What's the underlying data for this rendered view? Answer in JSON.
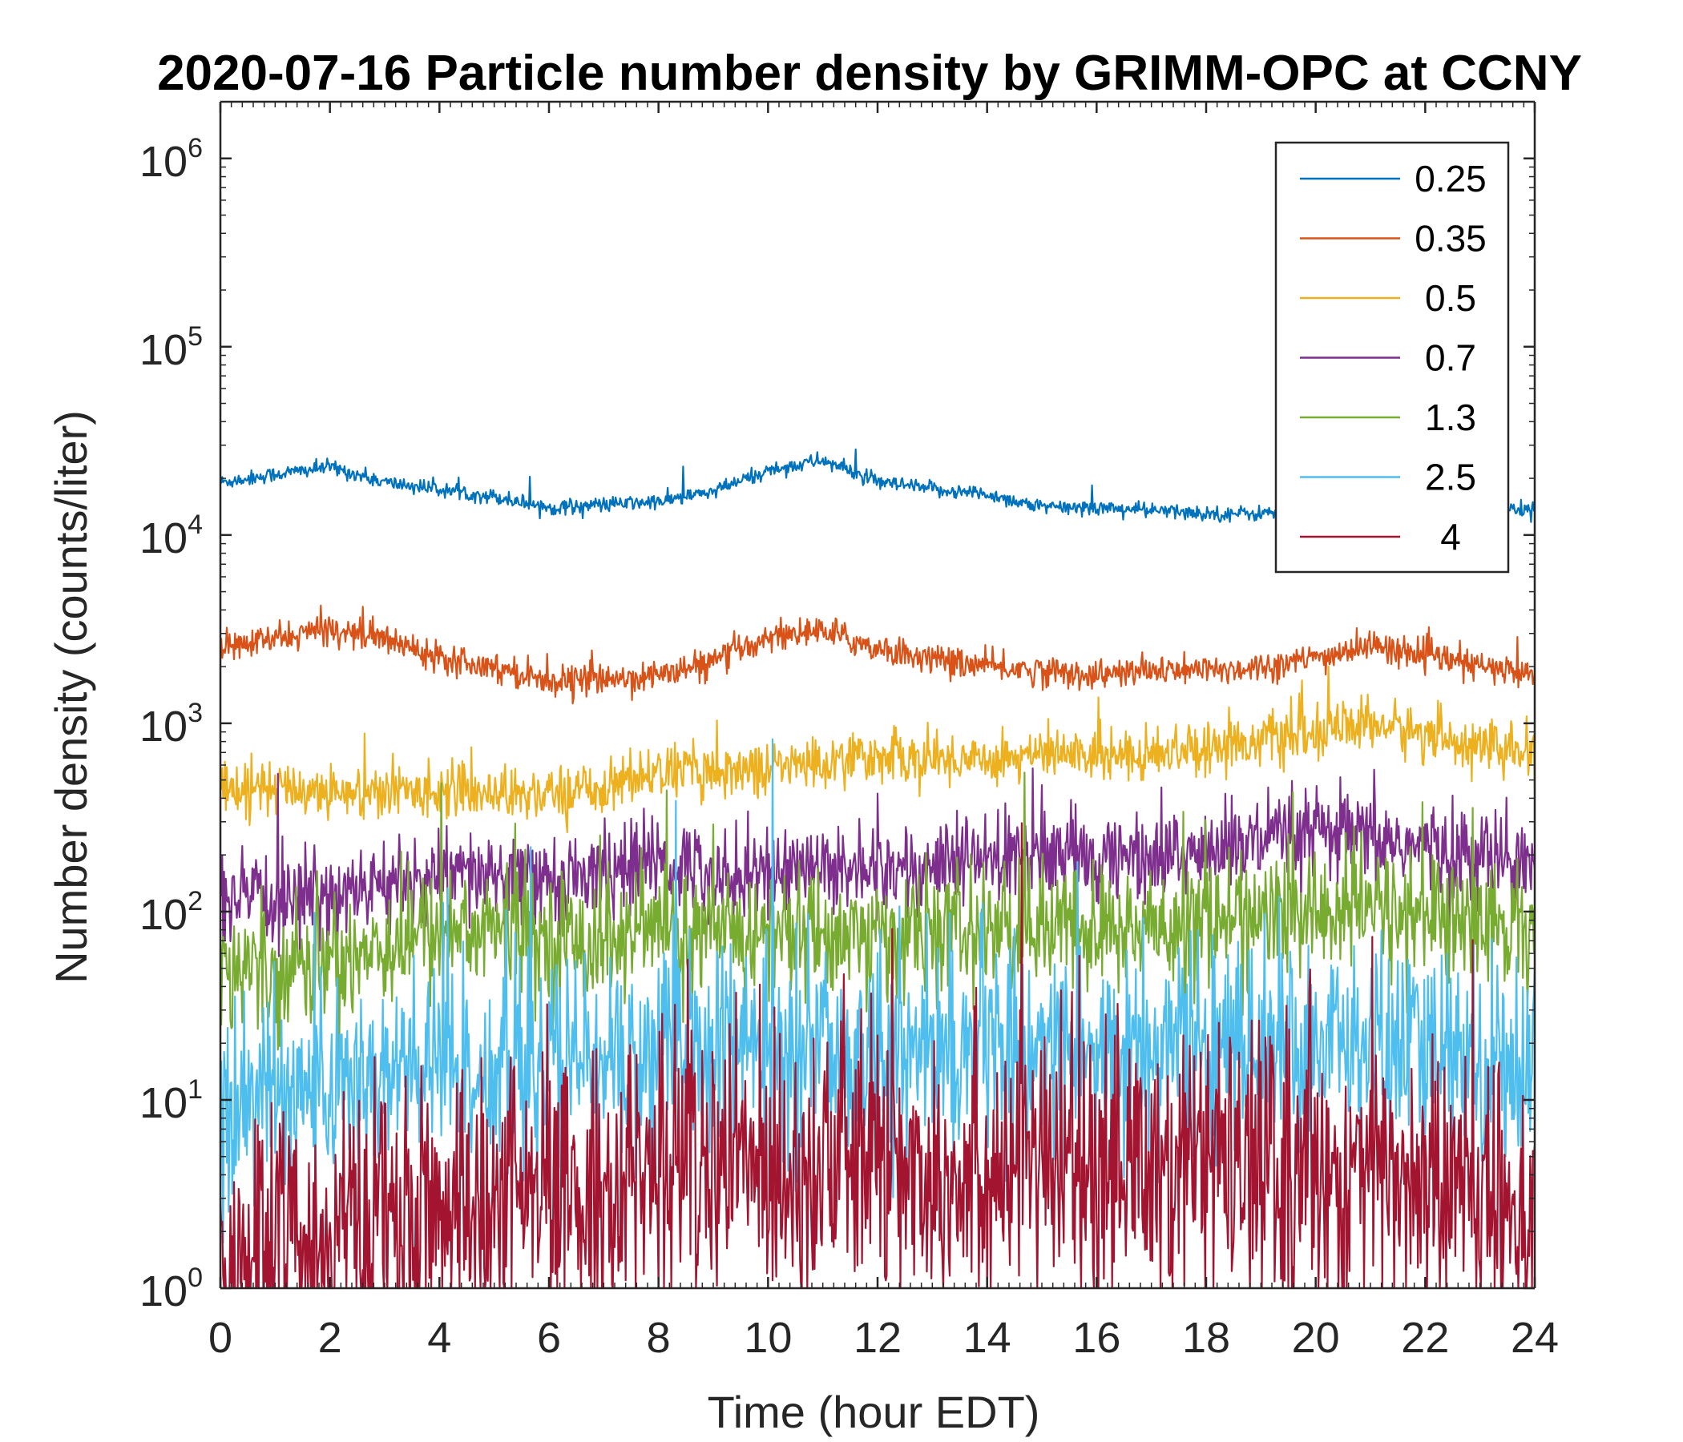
{
  "chart_data": {
    "type": "line",
    "title": "2020-07-16 Particle number density by GRIMM-OPC at CCNY",
    "xlabel": "Time (hour EDT)",
    "ylabel": "Number density (counts/liter)",
    "xlim": [
      0,
      24
    ],
    "ylim": [
      1,
      2000000
    ],
    "yscale": "log",
    "x_ticks": [
      "0",
      "2",
      "4",
      "6",
      "8",
      "10",
      "12",
      "14",
      "16",
      "18",
      "20",
      "22",
      "24"
    ],
    "y_ticks": [
      {
        "base": "10",
        "exp": "0",
        "value": 1
      },
      {
        "base": "10",
        "exp": "1",
        "value": 10
      },
      {
        "base": "10",
        "exp": "2",
        "value": 100
      },
      {
        "base": "10",
        "exp": "3",
        "value": 1000
      },
      {
        "base": "10",
        "exp": "4",
        "value": 10000
      },
      {
        "base": "10",
        "exp": "5",
        "value": 100000
      },
      {
        "base": "10",
        "exp": "6",
        "value": 1000000
      }
    ],
    "legend_position": "top-right",
    "x": [
      0,
      1,
      2,
      3,
      4,
      5,
      6,
      7,
      8,
      9,
      10,
      11,
      12,
      13,
      14,
      15,
      16,
      17,
      18,
      19,
      20,
      21,
      22,
      23,
      24
    ],
    "series": [
      {
        "name": "0.25",
        "color": "#0072BD",
        "noise": 0.02,
        "values": [
          19000,
          21000,
          23000,
          19000,
          17500,
          16000,
          14000,
          14500,
          15000,
          17000,
          22000,
          25000,
          19000,
          17500,
          16500,
          14000,
          14000,
          13500,
          13000,
          13000,
          14000,
          14500,
          13500,
          13000,
          14000
        ]
      },
      {
        "name": "0.35",
        "color": "#D95319",
        "noise": 0.04,
        "values": [
          2500,
          2800,
          3200,
          2800,
          2300,
          2000,
          1700,
          1700,
          1800,
          2100,
          2900,
          3100,
          2500,
          2200,
          2000,
          1900,
          1800,
          1900,
          1900,
          2000,
          2200,
          2600,
          2300,
          2000,
          1800
        ]
      },
      {
        "name": "0.5",
        "color": "#EDB120",
        "noise": 0.07,
        "values": [
          480,
          450,
          440,
          420,
          450,
          430,
          420,
          460,
          560,
          560,
          580,
          620,
          680,
          640,
          660,
          680,
          690,
          700,
          760,
          820,
          880,
          1000,
          880,
          760,
          680
        ]
      },
      {
        "name": "0.7",
        "color": "#7E2F8E",
        "noise": 0.12,
        "values": [
          110,
          115,
          125,
          135,
          150,
          155,
          145,
          160,
          185,
          160,
          165,
          175,
          170,
          170,
          190,
          200,
          190,
          195,
          210,
          230,
          260,
          240,
          220,
          195,
          190
        ]
      },
      {
        "name": "1.3",
        "color": "#77AC30",
        "noise": 0.17,
        "values": [
          50,
          52,
          55,
          68,
          80,
          82,
          72,
          70,
          82,
          72,
          78,
          76,
          72,
          78,
          80,
          82,
          78,
          82,
          88,
          95,
          100,
          105,
          95,
          88,
          82
        ]
      },
      {
        "name": "2.5",
        "color": "#4DBEEE",
        "noise": 0.28,
        "values": [
          9,
          11,
          12,
          13,
          14,
          15,
          15,
          16,
          18,
          18,
          19,
          19,
          18,
          18,
          19,
          19,
          18,
          19,
          19,
          20,
          19,
          19,
          18,
          17,
          16
        ]
      },
      {
        "name": "4",
        "color": "#A2142F",
        "noise": 0.38,
        "values": [
          1.3,
          1.6,
          1.8,
          2.0,
          2.3,
          2.6,
          2.8,
          3.2,
          4.5,
          4.5,
          4.6,
          4.8,
          4.6,
          4.5,
          4.5,
          4.4,
          4.3,
          4.4,
          4.3,
          4.3,
          4.2,
          4.1,
          3.6,
          3.0,
          2.8
        ]
      }
    ]
  }
}
